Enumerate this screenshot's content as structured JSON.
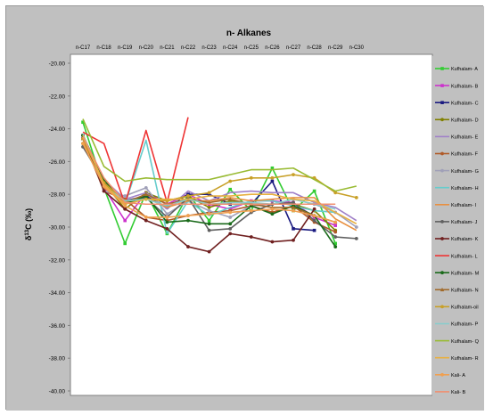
{
  "chart_data": {
    "type": "line",
    "title": "n- Alkanes",
    "ylabel": "δ13C (‰)",
    "ylabel_parts": {
      "delta": "δ",
      "sup": "13",
      "main": "C (‰)"
    },
    "y_ticks": [
      "-20.00",
      "-22.00",
      "-24.00",
      "-26.00",
      "-28.00",
      "-30.00",
      "-32.00",
      "-34.00",
      "-36.00",
      "-38.00",
      "-40.00"
    ],
    "ylim": [
      -40,
      -20
    ],
    "x_axis_position": "top",
    "categories": [
      "n-C17",
      "n-C18",
      "n-C19",
      "n-C20",
      "n-C21",
      "n-C22",
      "n-C23",
      "n-C24",
      "n-C25",
      "n-C26",
      "n-C27",
      "n-C28",
      "n-C29",
      "n-C30"
    ],
    "grid": false,
    "legend_position": "right",
    "series": [
      {
        "name": "Kufhalam- A",
        "color": "#33cc33",
        "marker": "square",
        "values": [
          -23.6,
          -27.6,
          -31.0,
          -27.9,
          -30.4,
          -28.0,
          -29.6,
          -27.7,
          -29.0,
          -26.4,
          -29.0,
          -27.8,
          -31.0,
          null
        ]
      },
      {
        "name": "Kufhalam- B",
        "color": "#cc33cc",
        "marker": "square",
        "values": [
          -24.6,
          -27.6,
          -29.6,
          -27.9,
          -28.6,
          -28.0,
          -28.6,
          -28.9,
          -28.4,
          -28.4,
          -28.5,
          -29.4,
          -29.9,
          null
        ]
      },
      {
        "name": "Kufhalam- C",
        "color": "#1a1a80",
        "marker": "square",
        "values": [
          -24.6,
          -27.6,
          -28.4,
          -28.1,
          -28.8,
          -28.0,
          -28.0,
          -28.6,
          -28.6,
          -27.2,
          -30.1,
          -30.2,
          null,
          null
        ]
      },
      {
        "name": "Kufhalam- D",
        "color": "#808000",
        "marker": "circle",
        "values": [
          -24.9,
          -27.3,
          -28.9,
          -27.9,
          -28.4,
          -28.1,
          -28.8,
          -28.4,
          -28.6,
          -28.6,
          -28.6,
          -29.0,
          -30.2,
          null
        ]
      },
      {
        "name": "Kufhalam- E",
        "color": "#a080c8",
        "marker": "none",
        "values": [
          -25.1,
          -27.1,
          -28.3,
          -27.9,
          -28.9,
          -27.8,
          -28.4,
          -27.9,
          -27.8,
          -27.9,
          -27.9,
          -28.5,
          -28.8,
          -29.6
        ]
      },
      {
        "name": "Kufhalam- F",
        "color": "#b05a28",
        "marker": "circle",
        "values": [
          -24.6,
          -27.8,
          -28.3,
          -29.4,
          -29.6,
          -29.3,
          -29.1,
          -29.0,
          -28.7,
          -29.1,
          -28.7,
          -29.7,
          -30.3,
          null
        ]
      },
      {
        "name": "Kufhalam- G",
        "color": "#a0a0b8",
        "marker": "circle",
        "values": [
          -24.4,
          -27.8,
          -28.1,
          -27.6,
          -29.2,
          -28.4,
          -29.0,
          -29.4,
          -28.7,
          -28.6,
          -28.3,
          -28.6,
          -29.1,
          -30.0
        ]
      },
      {
        "name": "Kufhalam- H",
        "color": "#66cccc",
        "marker": "none",
        "values": [
          -25.0,
          -27.4,
          -28.6,
          -24.7,
          -30.4,
          -28.4,
          -29.3,
          -28.8,
          -28.4,
          -28.4,
          -28.7,
          -29.0,
          -29.1,
          null
        ]
      },
      {
        "name": "Kufhalam- I",
        "color": "#e89040",
        "marker": "none",
        "values": [
          -24.8,
          -27.6,
          -28.5,
          -28.2,
          -28.8,
          -28.4,
          -28.4,
          -28.2,
          -28.4,
          -28.3,
          -28.2,
          -28.2,
          -29.5,
          -30.2
        ]
      },
      {
        "name": "Kufhalam- J",
        "color": "#606060",
        "marker": "circle",
        "values": [
          -25.1,
          -27.2,
          -28.4,
          -28.2,
          -29.4,
          -28.2,
          -30.2,
          -30.1,
          -29.1,
          -28.6,
          -28.5,
          -29.6,
          -30.6,
          -30.7
        ]
      },
      {
        "name": "Kufhalam- K",
        "color": "#702020",
        "marker": "circle",
        "values": [
          -24.4,
          -27.8,
          -28.9,
          -29.6,
          -30.1,
          -31.2,
          -31.5,
          -30.4,
          -30.6,
          -30.9,
          -30.8,
          -28.9,
          null,
          null
        ]
      },
      {
        "name": "Kufhalam- L",
        "color": "#ee3333",
        "marker": "none",
        "values": [
          -24.2,
          -24.9,
          -28.6,
          -24.1,
          -28.5,
          -23.3,
          null,
          null,
          null,
          null,
          null,
          null,
          null,
          null
        ]
      },
      {
        "name": "Kufhalam- M",
        "color": "#1a6a1a",
        "marker": "circle",
        "values": [
          -24.4,
          -27.1,
          -28.6,
          -28.1,
          -29.7,
          -29.6,
          -29.8,
          -29.8,
          -28.7,
          -29.2,
          -28.7,
          -29.3,
          -31.2,
          null
        ]
      },
      {
        "name": "Kufhalam- N",
        "color": "#a06a2a",
        "marker": "triangle",
        "values": [
          -24.6,
          -27.3,
          -28.5,
          -28.0,
          -28.6,
          -28.3,
          -28.5,
          -28.3,
          -28.6,
          -28.8,
          -28.8,
          -29.3,
          -29.7,
          null
        ]
      },
      {
        "name": "Kufhalam-oil",
        "color": "#c8a028",
        "marker": "circle",
        "values": [
          -24.6,
          -27.3,
          -28.4,
          -28.3,
          -28.4,
          -28.1,
          -27.9,
          -27.2,
          -27.0,
          -27.0,
          -26.8,
          -27.0,
          -27.9,
          -28.2
        ]
      },
      {
        "name": "Kufhalam- P",
        "color": "#88cccc",
        "marker": "none",
        "values": [
          -24.3,
          -27.5,
          -28.4,
          -28.3,
          -28.7,
          -28.3,
          -28.6,
          -28.5,
          -28.5,
          -28.6,
          -28.3,
          -28.6,
          -28.9,
          null
        ]
      },
      {
        "name": "Kufhalam- Q",
        "color": "#99bb33",
        "marker": "none",
        "values": [
          -23.4,
          -26.3,
          -27.2,
          -27.0,
          -27.1,
          -27.1,
          -27.1,
          -26.8,
          -26.5,
          -26.5,
          -26.4,
          -27.1,
          -27.8,
          -27.5
        ]
      },
      {
        "name": "Kufhalam- R",
        "color": "#e8b040",
        "marker": "none",
        "values": [
          -24.4,
          -27.4,
          -28.6,
          -28.3,
          -28.3,
          -28.3,
          -28.1,
          -28.1,
          -28.0,
          -28.0,
          -28.3,
          -28.4,
          -29.1,
          -29.8
        ]
      },
      {
        "name": "Kali- A",
        "color": "#f0a050",
        "marker": "circle",
        "values": [
          -24.9,
          -27.5,
          -28.7,
          -29.4,
          -29.4,
          -29.3,
          -29.2,
          -29.1,
          -29.0,
          -28.9,
          -29.0,
          -29.3,
          -29.7,
          null
        ]
      },
      {
        "name": "Kali- B",
        "color": "#f09070",
        "marker": "none",
        "values": [
          -24.5,
          -27.0,
          -28.5,
          -28.6,
          -28.6,
          -28.6,
          -28.6,
          -28.6,
          -28.6,
          -28.6,
          -28.6,
          -28.6,
          -28.6,
          null
        ]
      }
    ]
  }
}
